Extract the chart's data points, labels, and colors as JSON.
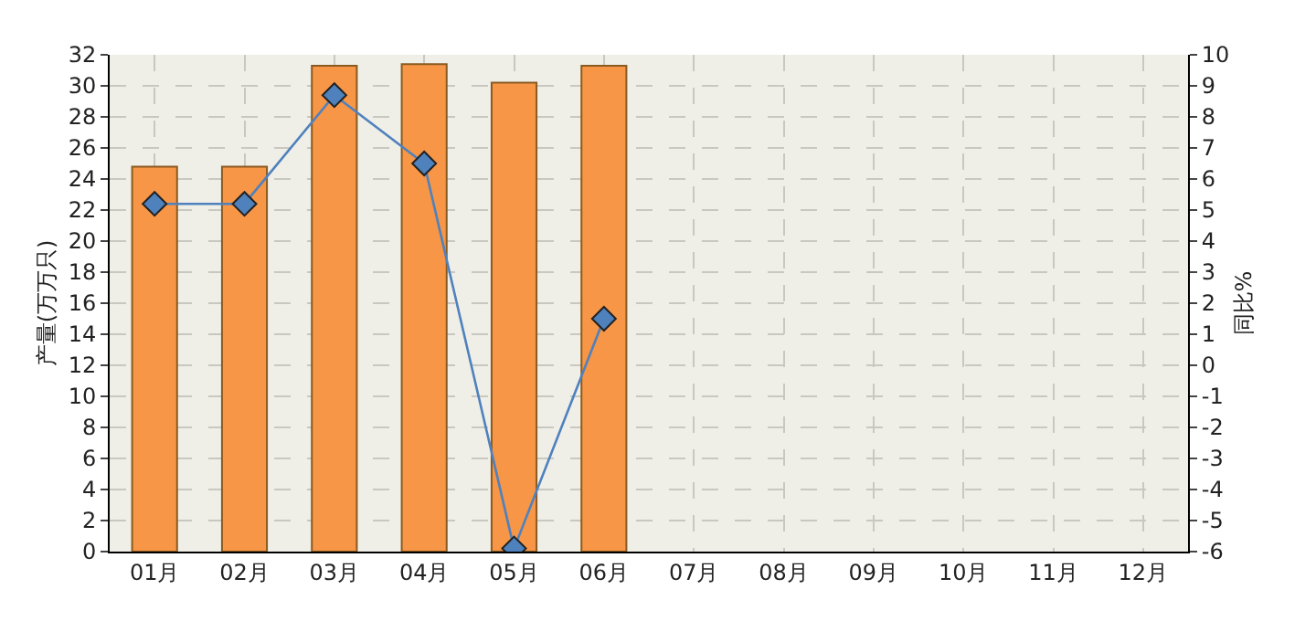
{
  "chart_data": {
    "type": "bar",
    "ylabel": "产量(万万只)",
    "y2label": "同比%",
    "categories": [
      "01月",
      "02月",
      "03月",
      "04月",
      "05月",
      "06月",
      "07月",
      "08月",
      "09月",
      "10月",
      "11月",
      "12月"
    ],
    "series": [
      {
        "color": "#f79646",
        "values": [
          24.8,
          24.8,
          31.3,
          31.4,
          30.2,
          31.3,
          null,
          null,
          null,
          null,
          null,
          null
        ]
      },
      {
        "type": "line",
        "axis": "y2",
        "color": "#4f81bd",
        "marker": "diamond",
        "line_style": "solid",
        "values": [
          5.2,
          5.2,
          8.7,
          6.5,
          -5.9,
          1.5,
          null,
          null,
          null,
          null,
          null,
          null
        ]
      }
    ],
    "ylim": [
      0,
      32
    ],
    "yticks": [
      0,
      2,
      4,
      6,
      8,
      10,
      12,
      14,
      16,
      18,
      20,
      22,
      24,
      26,
      28,
      30,
      32
    ],
    "y2lim": [
      -6,
      10
    ],
    "y2ticks": [
      -6,
      -5,
      -4,
      -3,
      -2,
      -1,
      0,
      1,
      2,
      3,
      4,
      5,
      6,
      7,
      8,
      9,
      10
    ],
    "grid": true,
    "legend": false
  }
}
